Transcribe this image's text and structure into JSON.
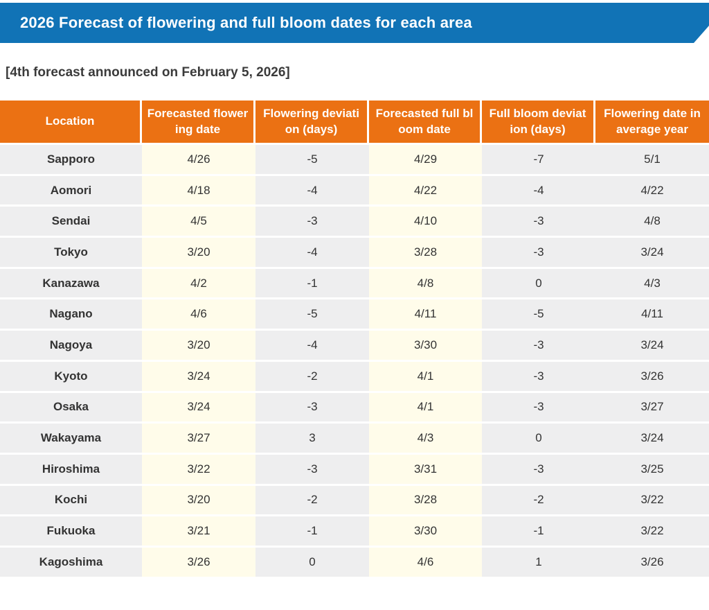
{
  "header": {
    "title": "2026 Forecast of flowering and full bloom dates for each area",
    "bg_color": "#1173b6"
  },
  "subtitle": "[4th forecast announced on February 5, 2026]",
  "table": {
    "header_bg_color": "#eb7113",
    "gray_cell_color": "#eeeeef",
    "cream_cell_color": "#fffcea",
    "columns": [
      {
        "id": "location",
        "lines": [
          "Location"
        ],
        "tone": "gray"
      },
      {
        "id": "forecasted-flowering-date",
        "lines": [
          "Forecasted flower",
          "ing date"
        ],
        "tone": "cream"
      },
      {
        "id": "flowering-deviation-days",
        "lines": [
          "Flowering deviati",
          "on (days)"
        ],
        "tone": "gray"
      },
      {
        "id": "forecasted-full-bloom-date",
        "lines": [
          "Forecasted full bl",
          "oom date"
        ],
        "tone": "cream"
      },
      {
        "id": "full-bloom-deviation-days",
        "lines": [
          "Full bloom deviat",
          "ion (days)"
        ],
        "tone": "gray"
      },
      {
        "id": "flowering-date-average-year",
        "lines": [
          "Flowering date in",
          "average year"
        ],
        "tone": "gray"
      }
    ],
    "rows": [
      [
        "Sapporo",
        "4/26",
        "-5",
        "4/29",
        "-7",
        "5/1"
      ],
      [
        "Aomori",
        "4/18",
        "-4",
        "4/22",
        "-4",
        "4/22"
      ],
      [
        "Sendai",
        "4/5",
        "-3",
        "4/10",
        "-3",
        "4/8"
      ],
      [
        "Tokyo",
        "3/20",
        "-4",
        "3/28",
        "-3",
        "3/24"
      ],
      [
        "Kanazawa",
        "4/2",
        "-1",
        "4/8",
        "0",
        "4/3"
      ],
      [
        "Nagano",
        "4/6",
        "-5",
        "4/11",
        "-5",
        "4/11"
      ],
      [
        "Nagoya",
        "3/20",
        "-4",
        "3/30",
        "-3",
        "3/24"
      ],
      [
        "Kyoto",
        "3/24",
        "-2",
        "4/1",
        "-3",
        "3/26"
      ],
      [
        "Osaka",
        "3/24",
        "-3",
        "4/1",
        "-3",
        "3/27"
      ],
      [
        "Wakayama",
        "3/27",
        "3",
        "4/3",
        "0",
        "3/24"
      ],
      [
        "Hiroshima",
        "3/22",
        "-3",
        "3/31",
        "-3",
        "3/25"
      ],
      [
        "Kochi",
        "3/20",
        "-2",
        "3/28",
        "-2",
        "3/22"
      ],
      [
        "Fukuoka",
        "3/21",
        "-1",
        "3/30",
        "-1",
        "3/22"
      ],
      [
        "Kagoshima",
        "3/26",
        "0",
        "4/6",
        "1",
        "3/26"
      ]
    ]
  }
}
